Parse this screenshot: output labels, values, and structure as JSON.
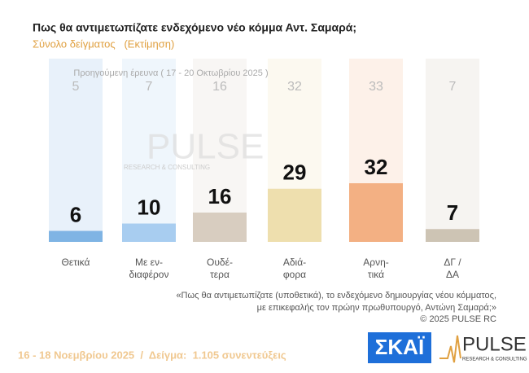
{
  "chart_data": {
    "type": "bar",
    "title": "Πως θα αντιμετωπίζατε ενδεχόμενο νέο κόμμα Αντ. Σαμαρά;",
    "subtitle": "Σύνολο δείγματος   (Εκτίμηση)",
    "categories": [
      "Θετικά",
      "Με εν-\nδιαφέρον",
      "Ουδέ-\nτερα",
      "Αδιά-\nφορα",
      "Αρνη-\nτικά",
      "ΔΓ /\nΔΑ"
    ],
    "values": [
      6,
      10,
      16,
      29,
      32,
      7
    ],
    "colors": [
      "#7fb4e4",
      "#a8cdf0",
      "#d8cdc0",
      "#eedfae",
      "#f3b083",
      "#cdc4b4"
    ],
    "previous": {
      "label": "Προηγούμενη έρευνα ( 17 - 20 Οκτωβρίου 2025 )",
      "values": [
        5,
        7,
        16,
        32,
        33,
        7
      ]
    },
    "ylim": [
      0,
      100
    ],
    "watermark": {
      "title": "PULSE",
      "subtitle": "RESEARCH & CONSULTING"
    },
    "footnote": [
      "«Πως θα αντιμετωπίζατε (υποθετικά), το ενδεχόμενο δημιουργίας νέου κόμματος,",
      "με επικεφαλής τον πρώην πρωθυπουργό, Αντώνη Σαμαρά;»",
      "©  2025  PULSE RC"
    ],
    "footer": "16 - 18 Νοεμβρίου 2025  /  Δείγμα:  1.105 συνεντεύξεις",
    "logos": {
      "skai": "ΣΚΑΪ",
      "pulse": "PULSE",
      "pulse_sub": "RESEARCH & CONSULTING"
    }
  }
}
